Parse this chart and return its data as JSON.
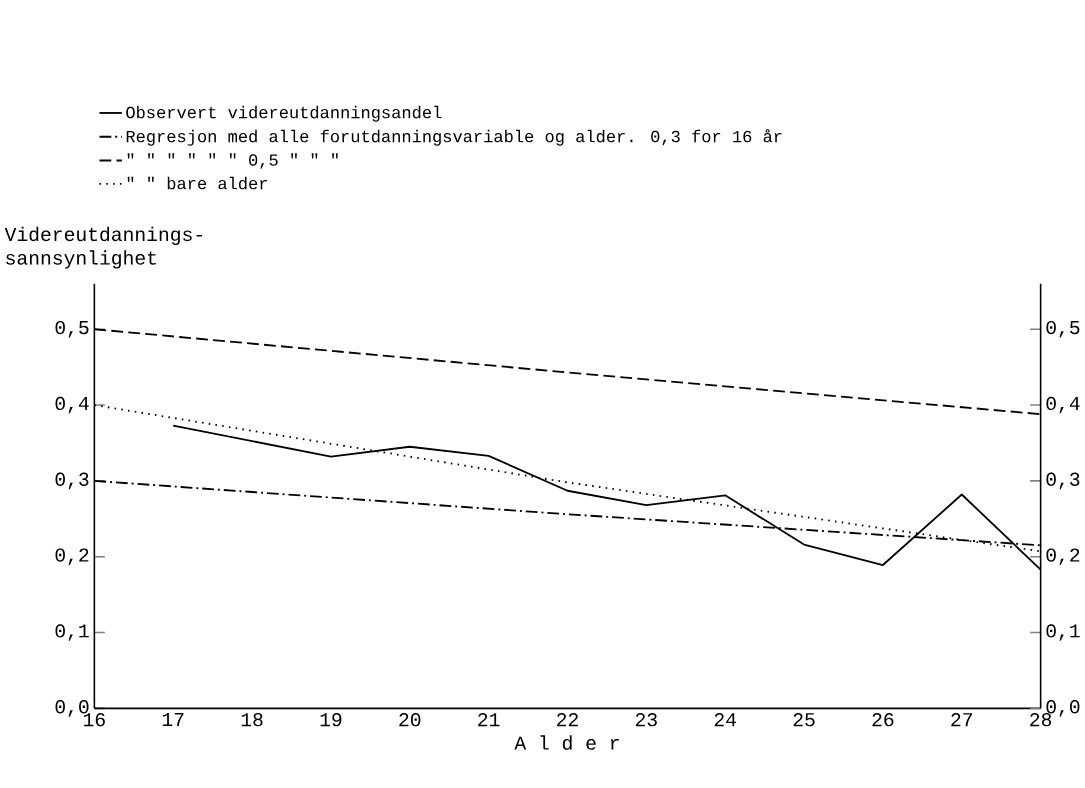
{
  "chart_data": {
    "type": "line",
    "xlabel": "A l d e r",
    "ylabel": "Videreutdannings-sannsynlighet",
    "xlim": [
      16,
      28
    ],
    "xticks": [
      16,
      17,
      18,
      19,
      20,
      21,
      22,
      23,
      24,
      25,
      26,
      27,
      28
    ],
    "ylim": [
      0,
      0.56
    ],
    "yticks": [
      {
        "value": 0,
        "label": "0,0"
      },
      {
        "value": 0.1,
        "label": "0,1"
      },
      {
        "value": 0.2,
        "label": "0,2"
      },
      {
        "value": 0.3,
        "label": "0,3"
      },
      {
        "value": 0.4,
        "label": "0,4"
      },
      {
        "value": 0.5,
        "label": "0,5"
      }
    ],
    "y2lim": [
      0,
      0.56
    ],
    "y2ticks": [
      {
        "value": 0,
        "label": "0,0"
      },
      {
        "value": 0.1,
        "label": "0,1"
      },
      {
        "value": 0.2,
        "label": "0,2"
      },
      {
        "value": 0.3,
        "label": "0,3"
      },
      {
        "value": 0.4,
        "label": "0,4"
      },
      {
        "value": 0.5,
        "label": "0,5"
      }
    ],
    "legend": "top left",
    "grid": false,
    "marker": "none",
    "series": [
      {
        "name": "Observert videreutdanningsandel",
        "color": "#000000",
        "line_style": "solid",
        "x": [
          17,
          19,
          20,
          21,
          22,
          23,
          24,
          25,
          26,
          27,
          28
        ],
        "values": [
          0.373,
          0.332,
          0.345,
          0.333,
          0.287,
          0.268,
          0.281,
          0.216,
          0.189,
          0.282,
          0.183
        ]
      },
      {
        "name": "Regresjon med alle forutdanningsvariable og alder. 0,3 for 16 år",
        "color": "#000000",
        "line_style": "dashdot",
        "x": [
          16,
          22,
          28
        ],
        "values": [
          0.3,
          0.256,
          0.215
        ]
      },
      {
        "name": "\"   \"   \"   \"   \"   \" 0,5 \"   \"   \"",
        "color": "#000000",
        "line_style": "dashed",
        "x": [
          16,
          22,
          28
        ],
        "values": [
          0.5,
          0.443,
          0.388
        ]
      },
      {
        "name": "\"   \" bare alder",
        "color": "#000000",
        "line_style": "dotted",
        "x": [
          16,
          22,
          28
        ],
        "values": [
          0.4,
          0.298,
          0.207
        ]
      }
    ]
  }
}
